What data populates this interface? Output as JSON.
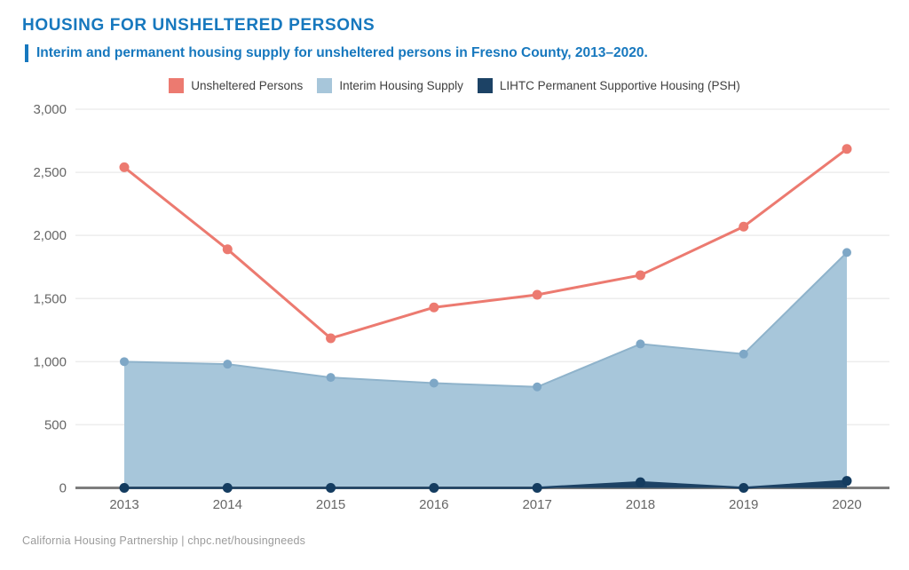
{
  "header": {
    "title": "HOUSING FOR UNSHELTERED PERSONS",
    "subtitle": "Interim and permanent housing supply for unsheltered persons in Fresno County, 2013–2020."
  },
  "legend": [
    {
      "label": "Unsheltered Persons",
      "color": "#EC7A70"
    },
    {
      "label": "Interim Housing Supply",
      "color": "#A7C6DA"
    },
    {
      "label": "LIHTC Permanent Supportive Housing (PSH)",
      "color": "#1C4265"
    }
  ],
  "chart_data": {
    "type": "line",
    "title": "Housing for Unsheltered Persons",
    "x": [
      "2013",
      "2014",
      "2015",
      "2016",
      "2017",
      "2018",
      "2019",
      "2020"
    ],
    "series": [
      {
        "name": "Interim Housing Supply",
        "kind": "area",
        "z": 1,
        "fill": "#A7C6DA",
        "line_color": "#8FB3CB",
        "marker_color": "#7EA7C6",
        "line_width": 2,
        "marker_radius": 5,
        "values": [
          1000,
          980,
          875,
          830,
          800,
          1140,
          1060,
          1865
        ]
      },
      {
        "name": "LIHTC Permanent Supportive Housing (PSH)",
        "kind": "area",
        "z": 2,
        "fill": "#1C4265",
        "line_color": "#1C4265",
        "marker_color": "#143C60",
        "line_width": 2.5,
        "marker_radius": 5.5,
        "values": [
          0,
          0,
          0,
          0,
          0,
          45,
          0,
          55
        ]
      },
      {
        "name": "Unsheltered Persons",
        "kind": "line",
        "z": 3,
        "line_color": "#EC7A70",
        "marker_color": "#EC7A70",
        "line_width": 3,
        "marker_radius": 5.5,
        "values": [
          2540,
          1890,
          1185,
          1430,
          1530,
          1685,
          2070,
          2685
        ]
      }
    ],
    "ylim": [
      0,
      3000
    ],
    "yticks": [
      0,
      500,
      1000,
      1500,
      2000,
      2500,
      3000
    ],
    "ytick_labels": [
      "0",
      "500",
      "1,000",
      "1,500",
      "2,000",
      "2,500",
      "3,000"
    ],
    "grid": true,
    "grid_color": "#ededed",
    "axis_color": "#7d7d7d",
    "tick_label_color": "#666666",
    "legend_position": "top"
  },
  "footer": {
    "credit": "California Housing Partnership | chpc.net/housingneeds"
  }
}
